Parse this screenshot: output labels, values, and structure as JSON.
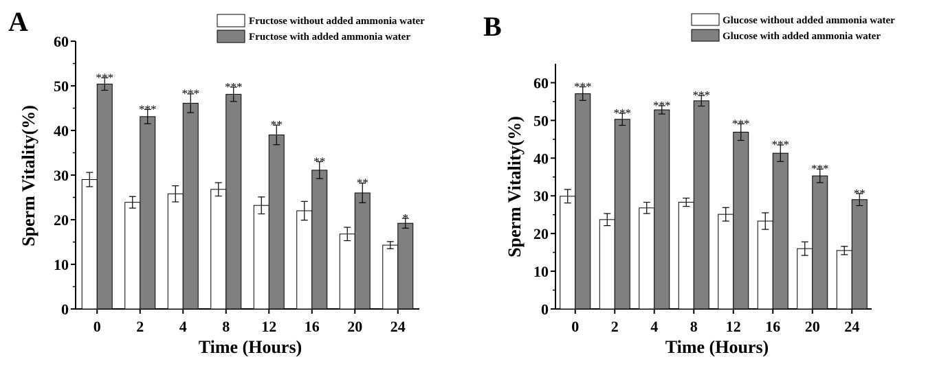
{
  "panels": [
    {
      "letter": "A",
      "chart_data": {
        "type": "bar",
        "categories": [
          "0",
          "2",
          "4",
          "8",
          "12",
          "16",
          "20",
          "24"
        ],
        "xlabel": "Time (Hours)",
        "ylabel": "Sperm Vitality(%)",
        "ylim": [
          0,
          60
        ],
        "yticks": [
          0,
          10,
          20,
          30,
          40,
          50,
          60
        ],
        "grid": false,
        "legend_position": "top-right",
        "series": [
          {
            "name": "Fructose without added ammonia water",
            "color": "#ffffff",
            "values": [
              29.0,
              23.9,
              25.8,
              26.8,
              23.2,
              22.0,
              16.8,
              14.3
            ],
            "errors": [
              1.6,
              1.3,
              1.8,
              1.5,
              1.9,
              2.1,
              1.5,
              0.8
            ]
          },
          {
            "name": "Fructose with added ammonia water",
            "color": "#808080",
            "values": [
              50.4,
              43.1,
              46.1,
              48.1,
              39.0,
              31.1,
              26.0,
              19.2
            ],
            "errors": [
              1.4,
              1.6,
              2.1,
              1.6,
              2.2,
              1.9,
              2.2,
              1.1
            ]
          }
        ],
        "annotations": [
          "***",
          "***",
          "***",
          "***",
          "**",
          "**",
          "**",
          "*"
        ]
      }
    },
    {
      "letter": "B",
      "chart_data": {
        "type": "bar",
        "categories": [
          "0",
          "2",
          "4",
          "8",
          "12",
          "16",
          "20",
          "24"
        ],
        "xlabel": "Time (Hours)",
        "ylabel": "Sperm Vitality(%)",
        "ylim": [
          0,
          65
        ],
        "yticks": [
          0,
          10,
          20,
          30,
          40,
          50,
          60
        ],
        "grid": false,
        "legend_position": "top-right",
        "series": [
          {
            "name": "Glucose without added ammonia water",
            "color": "#ffffff",
            "values": [
              29.9,
              23.7,
              26.8,
              28.3,
              25.1,
              23.3,
              16.0,
              15.5
            ],
            "errors": [
              1.8,
              1.6,
              1.5,
              1.1,
              1.8,
              2.2,
              1.8,
              1.1
            ]
          },
          {
            "name": "Glucose with added ammonia water",
            "color": "#808080",
            "values": [
              57.1,
              50.3,
              52.8,
              55.2,
              46.9,
              41.3,
              35.3,
              29.0
            ],
            "errors": [
              1.8,
              1.6,
              1.1,
              1.4,
              2.2,
              2.2,
              1.8,
              1.6
            ]
          }
        ],
        "annotations": [
          "***",
          "***",
          "***",
          "***",
          "***",
          "***",
          "***",
          "**"
        ]
      }
    }
  ]
}
